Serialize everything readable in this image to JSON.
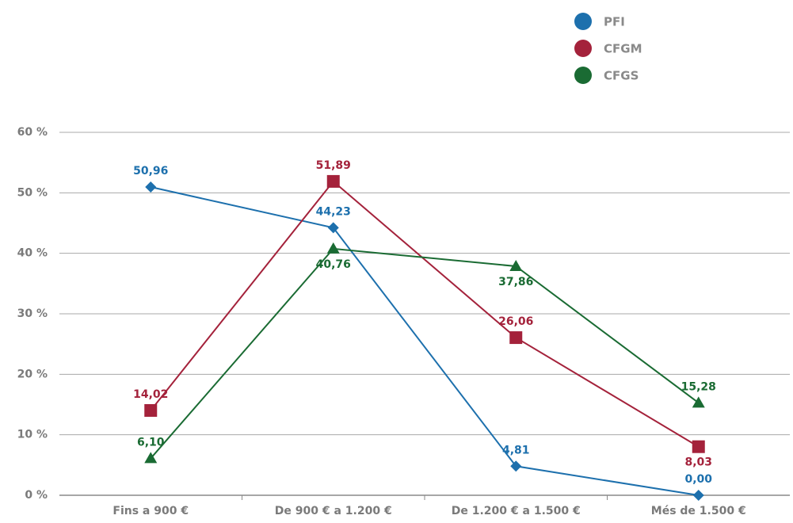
{
  "chart_data": {
    "type": "line",
    "categories": [
      "Fins a 900 €",
      "De 900 € a 1.200 €",
      "De 1.200 € a 1.500 €",
      "Més de 1.500 €"
    ],
    "ylim": [
      0,
      60
    ],
    "yticks": [
      {
        "value": 0,
        "label": "0 %"
      },
      {
        "value": 10,
        "label": "10 %"
      },
      {
        "value": 20,
        "label": "20 %"
      },
      {
        "value": 30,
        "label": "30 %"
      },
      {
        "value": 40,
        "label": "40 %"
      },
      {
        "value": 50,
        "label": "50 %"
      },
      {
        "value": 60,
        "label": "60 %"
      }
    ],
    "grid": true,
    "legend": "top-right",
    "series": [
      {
        "name": "PFI",
        "color": "#1d70ad",
        "marker": "diamond",
        "values": [
          50.96,
          44.23,
          4.81,
          0.0
        ],
        "value_labels": [
          "50,96",
          "44,23",
          "4,81",
          "0,00"
        ]
      },
      {
        "name": "CFGM",
        "color": "#a4223b",
        "marker": "square",
        "values": [
          14.02,
          51.89,
          26.06,
          8.03
        ],
        "value_labels": [
          "14,02",
          "51,89",
          "26,06",
          "8,03"
        ]
      },
      {
        "name": "CFGS",
        "color": "#1a6b33",
        "marker": "triangle",
        "values": [
          6.1,
          40.76,
          37.86,
          15.28
        ],
        "value_labels": [
          "6,10",
          "40,76",
          "37,86",
          "15,28"
        ]
      }
    ]
  }
}
